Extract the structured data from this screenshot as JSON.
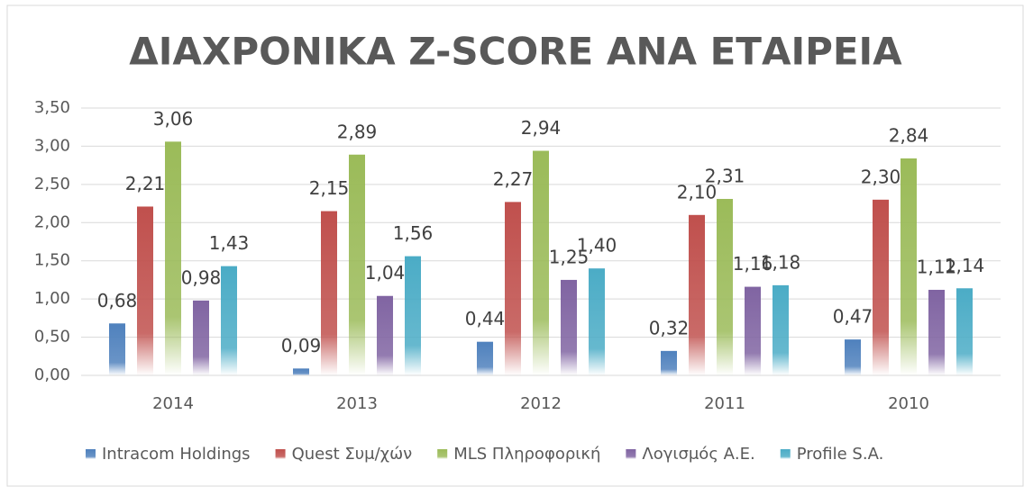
{
  "chart_data": {
    "type": "bar",
    "title": "ΔΙΑΧΡΟΝΙΚΑ Z-SCORE ΑΝΑ ΕΤΑΙΡΕΙΑ",
    "categories": [
      "2014",
      "2013",
      "2012",
      "2011",
      "2010"
    ],
    "series": [
      {
        "name": "Intracom Holdings",
        "color": "#4f81bd",
        "values": [
          0.68,
          0.09,
          0.44,
          0.32,
          0.47
        ],
        "value_labels": [
          "0,68",
          "0,09",
          "0,44",
          "0,32",
          "0,47"
        ]
      },
      {
        "name": "Quest Συμ/χών",
        "color": "#c0504d",
        "values": [
          2.21,
          2.15,
          2.27,
          2.1,
          2.3
        ],
        "value_labels": [
          "2,21",
          "2,15",
          "2,27",
          "2,10",
          "2,30"
        ]
      },
      {
        "name": "MLS Πληροφορική",
        "color": "#9bbb59",
        "values": [
          3.06,
          2.89,
          2.94,
          2.31,
          2.84
        ],
        "value_labels": [
          "3,06",
          "2,89",
          "2,94",
          "2,31",
          "2,84"
        ]
      },
      {
        "name": "Λογισμός Α.Ε.",
        "color": "#8064a2",
        "values": [
          0.98,
          1.04,
          1.25,
          1.16,
          1.12
        ],
        "value_labels": [
          "0,98",
          "1,04",
          "1,25",
          "1,16",
          "1,12"
        ]
      },
      {
        "name": "Profile S.A.",
        "color": "#4bacc6",
        "values": [
          1.43,
          1.56,
          1.4,
          1.18,
          1.14
        ],
        "value_labels": [
          "1,43",
          "1,56",
          "1,40",
          "1,18",
          "1,14"
        ]
      }
    ],
    "ylim": [
      0,
      3.5
    ],
    "yticks": [
      {
        "value": 0,
        "label": "0,00"
      },
      {
        "value": 0.5,
        "label": "0,50"
      },
      {
        "value": 1,
        "label": "1,00"
      },
      {
        "value": 1.5,
        "label": "1,50"
      },
      {
        "value": 2,
        "label": "2,00"
      },
      {
        "value": 2.5,
        "label": "2,50"
      },
      {
        "value": 3,
        "label": "3,00"
      },
      {
        "value": 3.5,
        "label": "3,50"
      }
    ],
    "grid": true,
    "legend": "bottom"
  }
}
